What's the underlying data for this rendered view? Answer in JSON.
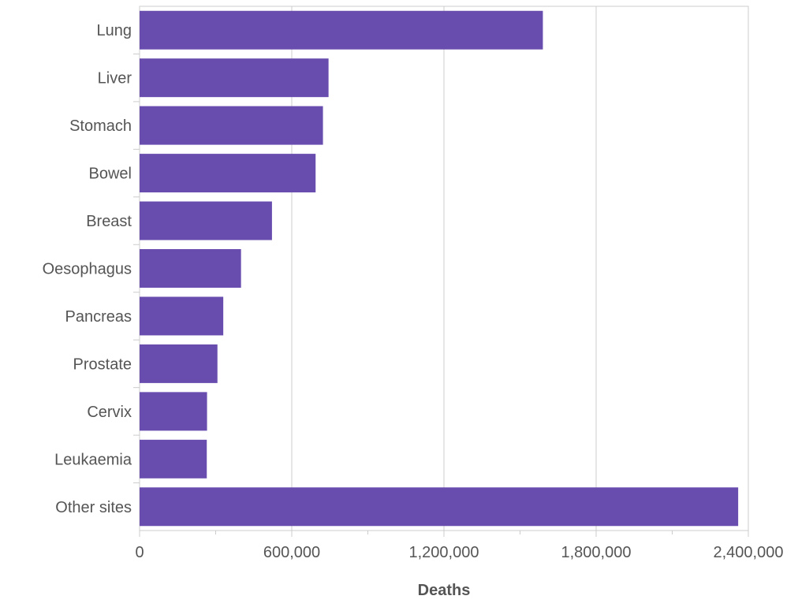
{
  "chart_data": {
    "type": "bar",
    "orientation": "horizontal",
    "categories": [
      "Lung",
      "Liver",
      "Stomach",
      "Bowel",
      "Breast",
      "Oesophagus",
      "Pancreas",
      "Prostate",
      "Cervix",
      "Leukaemia",
      "Other sites"
    ],
    "values": [
      1590000,
      745000,
      723000,
      694000,
      522000,
      400000,
      330000,
      307000,
      266000,
      265000,
      2360000
    ],
    "xlabel": "Deaths",
    "ylabel": "",
    "xlim": [
      0,
      2400000
    ],
    "x_ticks": [
      0,
      600000,
      1200000,
      1800000,
      2400000
    ],
    "x_tick_labels": [
      "0",
      "600,000",
      "1,200,000",
      "1,800,000",
      "2,400,000"
    ],
    "bar_color": "#684daf",
    "grid": true,
    "legend": "none"
  }
}
